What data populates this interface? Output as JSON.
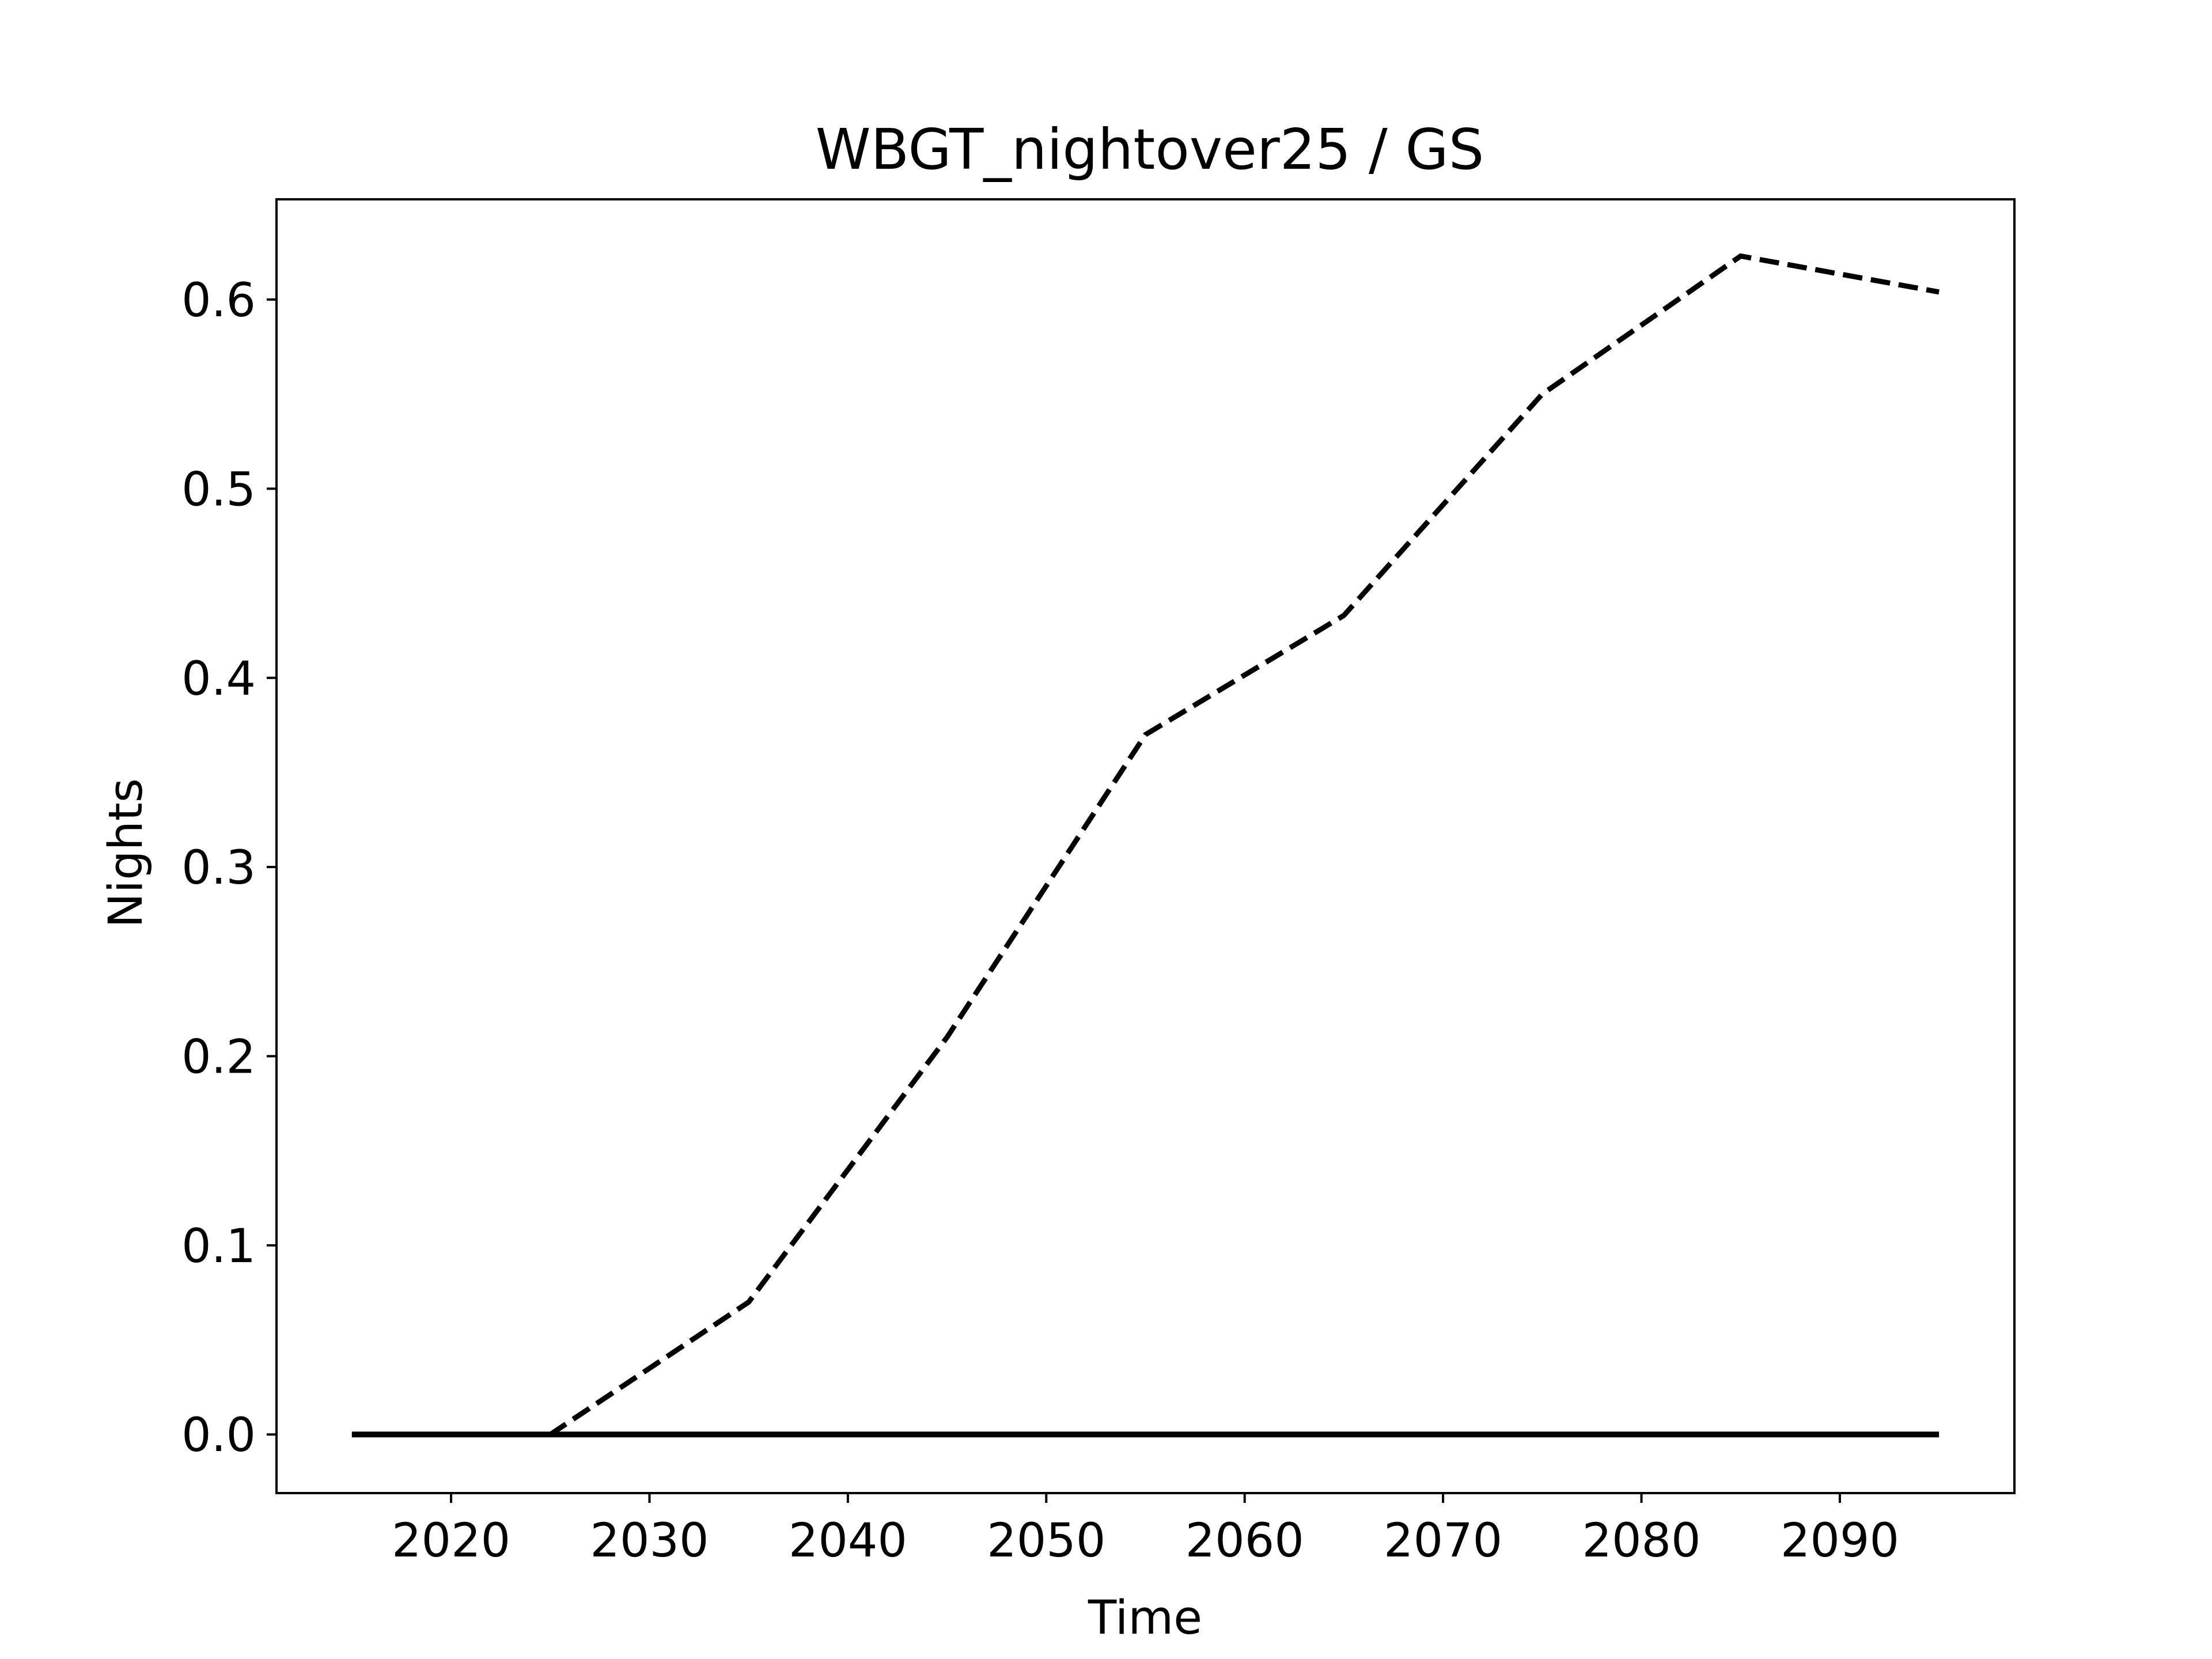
{
  "chart_data": {
    "type": "line",
    "title": "WBGT_nightover25 / GS",
    "xlabel": "Time",
    "ylabel": "Nights",
    "xlim": [
      2011.2,
      2098.8
    ],
    "ylim": [
      -0.031,
      0.653
    ],
    "x_ticks": [
      2020,
      2030,
      2040,
      2050,
      2060,
      2070,
      2080,
      2090
    ],
    "y_ticks": [
      0.0,
      0.1,
      0.2,
      0.3,
      0.4,
      0.5,
      0.6
    ],
    "y_tick_labels": [
      "0.0",
      "0.1",
      "0.2",
      "0.3",
      "0.4",
      "0.5",
      "0.6"
    ],
    "grid": false,
    "series": [
      {
        "line_style": "dashed",
        "color": "#000000",
        "x": [
          2015,
          2025,
          2035,
          2045,
          2055,
          2065,
          2075,
          2085,
          2095
        ],
        "y": [
          0.0,
          0.0,
          0.07,
          0.21,
          0.37,
          0.433,
          0.55,
          0.623,
          0.604
        ]
      },
      {
        "line_style": "solid",
        "color": "#000000",
        "x": [
          2015,
          2025,
          2035,
          2045,
          2055,
          2065,
          2075,
          2085,
          2095
        ],
        "y": [
          0.0,
          0.0,
          0.0,
          0.0,
          0.0,
          0.0,
          0.0,
          0.0,
          0.0
        ]
      }
    ]
  }
}
